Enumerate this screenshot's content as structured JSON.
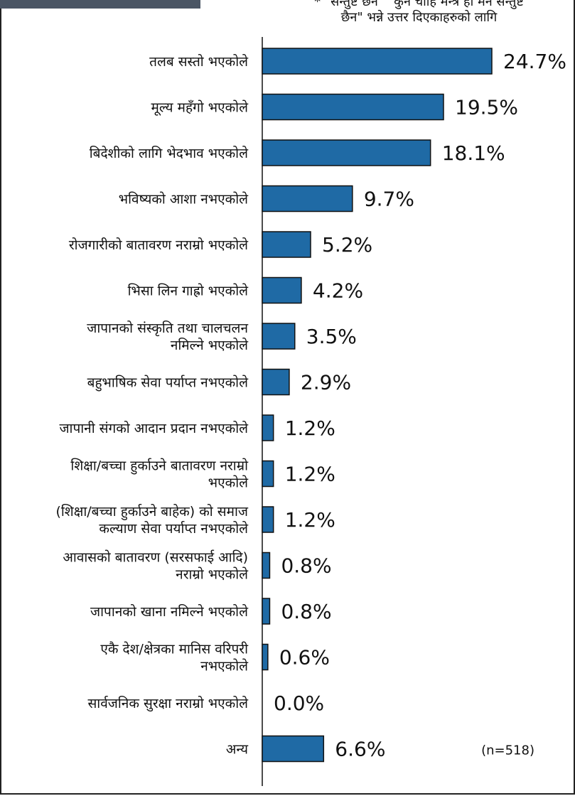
{
  "header": {
    "note_line1": "* \"सन्तुष्ट छन\" \"कुनै चाहि मन्त्र हो मन सन्तुष्ट",
    "note_line2": "छैन\" भन्ने उत्तर दिएकाहरुको लागि"
  },
  "chart_data": {
    "type": "bar",
    "orientation": "horizontal",
    "categories": [
      [
        "तलब सस्तो भएकोले"
      ],
      [
        "मूल्य महँगो भएकोले"
      ],
      [
        "बिदेशीको लागि भेदभाव भएकोले"
      ],
      [
        "भविष्यको आशा नभएकोले"
      ],
      [
        "रोजगारीको बातावरण नराम्रो भएकोले"
      ],
      [
        "भिसा लिन गाह्रो भएकोले"
      ],
      [
        "जापानको संस्कृति तथा चालचलन",
        "नमिल्ने भएकोले"
      ],
      [
        "बहुभाषिक सेवा पर्याप्त नभएकोले"
      ],
      [
        "जापानी संगको आदान प्रदान नभएकोले"
      ],
      [
        "शिक्षा/बच्चा हुर्काउने बातावरण नराम्रो",
        "भएकोले"
      ],
      [
        "(शिक्षा/बच्चा हुर्काउने बाहेक) को समाज",
        "कल्याण सेवा पर्याप्त नभएकोले"
      ],
      [
        "आवासको बातावरण (सरसफाई आदि)",
        "नराम्रो भएकोले"
      ],
      [
        "जापानको खाना नमिल्ने भएकोले"
      ],
      [
        "एकै देश/क्षेत्रका मानिस वरिपरी",
        "नभएकोले"
      ],
      [
        "सार्वजनिक सुरक्षा नराम्रो भएकोले"
      ],
      [
        "अन्य"
      ]
    ],
    "values": [
      24.7,
      19.5,
      18.1,
      9.7,
      5.2,
      4.2,
      3.5,
      2.9,
      1.2,
      1.2,
      1.2,
      0.8,
      0.8,
      0.6,
      0.0,
      6.6
    ],
    "value_labels": [
      "24.7%",
      "19.5%",
      "18.1%",
      "9.7%",
      "5.2%",
      "4.2%",
      "3.5%",
      "2.9%",
      "1.2%",
      "1.2%",
      "1.2%",
      "0.8%",
      "0.8%",
      "0.6%",
      "0.0%",
      "6.6%"
    ],
    "sample_note": "(n=518)",
    "xlim": [
      0,
      24.7
    ],
    "bar_color": "#1f6aa5",
    "bar_edge_color": "#111111",
    "grid": false
  }
}
